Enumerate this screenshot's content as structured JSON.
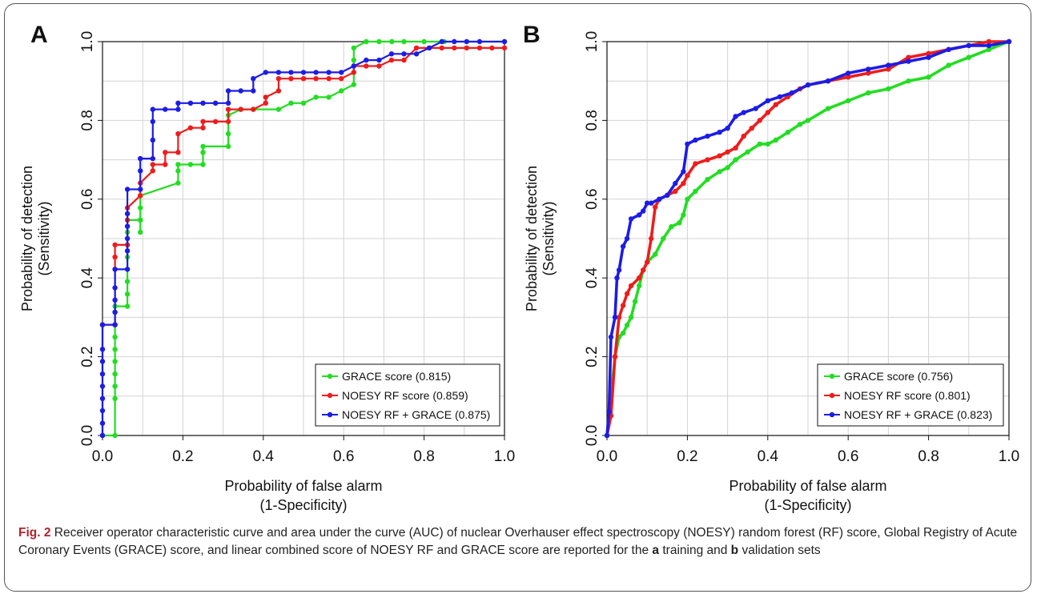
{
  "caption": {
    "fig_label": "Fig. 2",
    "text1": " Receiver operator characteristic curve and area under the curve (AUC) of nuclear Overhauser effect spectroscopy (NOESY) random forest (RF) score, Global Registry of Acute Coronary Events (GRACE) score, and linear combined score of NOESY RF and GRACE score are reported for the ",
    "letter_a": "a",
    "text2": " training and ",
    "letter_b": "b",
    "text3": " validation sets"
  },
  "colors": {
    "grace": "#22dd22",
    "noesy": "#ee1c1c",
    "combined": "#1c1ce6",
    "grid": "#d3d3d3"
  },
  "chart_data": [
    {
      "type": "line",
      "panel_label": "A",
      "xlabel": "Probability of false alarm",
      "xlabel2": "(1-Specificity)",
      "ylabel": "Probability of detection",
      "ylabel2": "(Sensitivity)",
      "xlim": [
        0,
        1
      ],
      "ylim": [
        0,
        1
      ],
      "xticks": [
        "0.0",
        "0.2",
        "0.4",
        "0.6",
        "0.8",
        "1.0"
      ],
      "yticks": [
        "0.0",
        "0.2",
        "0.4",
        "0.6",
        "0.8",
        "1.0"
      ],
      "grid": true,
      "legend_position": "bottom-right",
      "series": [
        {
          "name": "GRACE score (0.815)",
          "color_key": "grace",
          "x": [
            0,
            0.031,
            0.031,
            0.031,
            0.031,
            0.031,
            0.031,
            0.031,
            0.031,
            0.031,
            0.031,
            0.062,
            0.062,
            0.062,
            0.062,
            0.062,
            0.062,
            0.062,
            0.062,
            0.094,
            0.094,
            0.094,
            0.094,
            0.094,
            0.188,
            0.188,
            0.188,
            0.219,
            0.25,
            0.25,
            0.25,
            0.313,
            0.313,
            0.313,
            0.344,
            0.375,
            0.438,
            0.469,
            0.5,
            0.531,
            0.563,
            0.594,
            0.625,
            0.625,
            0.625,
            0.625,
            0.656,
            0.688,
            0.72,
            0.75,
            0.8,
            0.85,
            1
          ],
          "y": [
            0,
            0,
            0.094,
            0.125,
            0.156,
            0.188,
            0.219,
            0.25,
            0.281,
            0.313,
            0.328,
            0.328,
            0.359,
            0.391,
            0.422,
            0.453,
            0.484,
            0.516,
            0.547,
            0.547,
            0.516,
            0.547,
            0.578,
            0.609,
            0.641,
            0.672,
            0.688,
            0.688,
            0.688,
            0.719,
            0.734,
            0.734,
            0.766,
            0.813,
            0.828,
            0.828,
            0.828,
            0.844,
            0.844,
            0.859,
            0.859,
            0.875,
            0.891,
            0.922,
            0.953,
            0.984,
            1,
            1,
            1,
            1,
            1,
            1,
            1
          ]
        },
        {
          "name": "NOESY RF score (0.859)",
          "color_key": "noesy",
          "x": [
            0,
            0,
            0.031,
            0.031,
            0.031,
            0.031,
            0.062,
            0.062,
            0.062,
            0.094,
            0.094,
            0.125,
            0.125,
            0.156,
            0.156,
            0.188,
            0.188,
            0.219,
            0.25,
            0.25,
            0.281,
            0.313,
            0.313,
            0.344,
            0.375,
            0.406,
            0.406,
            0.438,
            0.438,
            0.469,
            0.5,
            0.531,
            0.563,
            0.594,
            0.625,
            0.625,
            0.656,
            0.688,
            0.719,
            0.75,
            0.781,
            0.813,
            0.844,
            0.875,
            0.906,
            0.938,
            0.969,
            1
          ],
          "y": [
            0,
            0.281,
            0.281,
            0.422,
            0.453,
            0.484,
            0.484,
            0.547,
            0.578,
            0.609,
            0.641,
            0.672,
            0.688,
            0.688,
            0.719,
            0.719,
            0.766,
            0.781,
            0.781,
            0.797,
            0.797,
            0.797,
            0.828,
            0.828,
            0.828,
            0.844,
            0.859,
            0.875,
            0.906,
            0.906,
            0.906,
            0.906,
            0.906,
            0.906,
            0.922,
            0.938,
            0.938,
            0.938,
            0.953,
            0.953,
            0.984,
            0.984,
            0.984,
            0.984,
            0.984,
            0.984,
            0.984,
            0.984
          ]
        },
        {
          "name": "NOESY RF + GRACE (0.875)",
          "color_key": "combined",
          "x": [
            0,
            0,
            0,
            0,
            0,
            0,
            0,
            0,
            0,
            0.031,
            0.031,
            0.031,
            0.031,
            0.031,
            0.062,
            0.062,
            0.062,
            0.062,
            0.062,
            0.062,
            0.094,
            0.094,
            0.094,
            0.125,
            0.125,
            0.125,
            0.125,
            0.156,
            0.188,
            0.188,
            0.219,
            0.25,
            0.281,
            0.313,
            0.313,
            0.344,
            0.375,
            0.375,
            0.406,
            0.438,
            0.469,
            0.5,
            0.531,
            0.563,
            0.594,
            0.625,
            0.656,
            0.688,
            0.719,
            0.75,
            0.781,
            0.813,
            0.844,
            0.875,
            0.906,
            0.938,
            1
          ],
          "y": [
            0,
            0.031,
            0.063,
            0.094,
            0.125,
            0.156,
            0.188,
            0.219,
            0.281,
            0.281,
            0.313,
            0.344,
            0.375,
            0.422,
            0.422,
            0.469,
            0.5,
            0.531,
            0.563,
            0.625,
            0.625,
            0.672,
            0.703,
            0.703,
            0.75,
            0.797,
            0.828,
            0.828,
            0.828,
            0.844,
            0.844,
            0.844,
            0.844,
            0.844,
            0.875,
            0.875,
            0.875,
            0.906,
            0.922,
            0.922,
            0.922,
            0.922,
            0.922,
            0.922,
            0.922,
            0.938,
            0.953,
            0.953,
            0.969,
            0.969,
            0.969,
            0.984,
            1,
            1,
            1,
            1,
            1
          ]
        }
      ]
    },
    {
      "type": "line",
      "panel_label": "B",
      "xlabel": "Probability of false alarm",
      "xlabel2": "(1-Specificity)",
      "ylabel": "Probability of detection",
      "ylabel2": "(Sensitivity)",
      "xlim": [
        0,
        1
      ],
      "ylim": [
        0,
        1
      ],
      "xticks": [
        "0.0",
        "0.2",
        "0.4",
        "0.6",
        "0.8",
        "1.0"
      ],
      "yticks": [
        "0.0",
        "0.2",
        "0.4",
        "0.6",
        "0.8",
        "1.0"
      ],
      "grid": true,
      "legend_position": "bottom-right",
      "series": [
        {
          "name": "GRACE score (0.756)",
          "color_key": "grace",
          "x": [
            0,
            0.01,
            0.02,
            0.03,
            0.04,
            0.05,
            0.06,
            0.07,
            0.08,
            0.09,
            0.1,
            0.12,
            0.14,
            0.16,
            0.18,
            0.19,
            0.2,
            0.22,
            0.25,
            0.28,
            0.3,
            0.32,
            0.35,
            0.38,
            0.4,
            0.42,
            0.45,
            0.48,
            0.5,
            0.55,
            0.6,
            0.65,
            0.7,
            0.75,
            0.8,
            0.85,
            0.9,
            0.95,
            1
          ],
          "y": [
            0,
            0.1,
            0.2,
            0.25,
            0.26,
            0.28,
            0.3,
            0.34,
            0.38,
            0.42,
            0.44,
            0.46,
            0.5,
            0.53,
            0.54,
            0.56,
            0.6,
            0.62,
            0.65,
            0.67,
            0.68,
            0.7,
            0.72,
            0.74,
            0.74,
            0.75,
            0.77,
            0.79,
            0.8,
            0.83,
            0.85,
            0.87,
            0.88,
            0.9,
            0.91,
            0.94,
            0.96,
            0.98,
            1
          ]
        },
        {
          "name": "NOESY RF score (0.801)",
          "color_key": "noesy",
          "x": [
            0,
            0.01,
            0.02,
            0.03,
            0.04,
            0.05,
            0.06,
            0.08,
            0.09,
            0.1,
            0.11,
            0.12,
            0.13,
            0.15,
            0.17,
            0.19,
            0.2,
            0.22,
            0.25,
            0.28,
            0.3,
            0.32,
            0.34,
            0.36,
            0.38,
            0.4,
            0.42,
            0.45,
            0.48,
            0.5,
            0.55,
            0.6,
            0.65,
            0.7,
            0.75,
            0.8,
            0.85,
            0.9,
            0.95,
            1
          ],
          "y": [
            0,
            0.05,
            0.2,
            0.3,
            0.33,
            0.36,
            0.38,
            0.4,
            0.42,
            0.44,
            0.5,
            0.58,
            0.6,
            0.61,
            0.62,
            0.64,
            0.66,
            0.69,
            0.7,
            0.71,
            0.72,
            0.73,
            0.76,
            0.78,
            0.8,
            0.82,
            0.84,
            0.86,
            0.88,
            0.89,
            0.9,
            0.91,
            0.92,
            0.93,
            0.96,
            0.97,
            0.98,
            0.99,
            1,
            1
          ]
        },
        {
          "name": "NOESY RF + GRACE (0.823)",
          "color_key": "combined",
          "x": [
            0,
            0.005,
            0.01,
            0.02,
            0.025,
            0.03,
            0.04,
            0.05,
            0.06,
            0.08,
            0.09,
            0.1,
            0.11,
            0.13,
            0.15,
            0.17,
            0.19,
            0.2,
            0.22,
            0.25,
            0.28,
            0.3,
            0.32,
            0.34,
            0.37,
            0.4,
            0.43,
            0.46,
            0.5,
            0.55,
            0.6,
            0.65,
            0.7,
            0.75,
            0.8,
            0.85,
            0.9,
            0.95,
            1
          ],
          "y": [
            0,
            0.06,
            0.25,
            0.3,
            0.4,
            0.42,
            0.48,
            0.5,
            0.55,
            0.56,
            0.57,
            0.59,
            0.59,
            0.6,
            0.61,
            0.64,
            0.67,
            0.74,
            0.75,
            0.76,
            0.77,
            0.78,
            0.81,
            0.82,
            0.83,
            0.85,
            0.86,
            0.87,
            0.89,
            0.9,
            0.92,
            0.93,
            0.94,
            0.95,
            0.96,
            0.98,
            0.99,
            0.99,
            1
          ]
        }
      ]
    }
  ]
}
